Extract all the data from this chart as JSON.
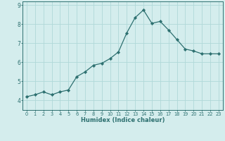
{
  "x": [
    0,
    1,
    2,
    3,
    4,
    5,
    6,
    7,
    8,
    9,
    10,
    11,
    12,
    13,
    14,
    15,
    16,
    17,
    18,
    19,
    20,
    21,
    22,
    23
  ],
  "y": [
    4.2,
    4.3,
    4.45,
    4.3,
    4.45,
    4.55,
    5.25,
    5.5,
    5.85,
    5.95,
    6.2,
    6.55,
    7.55,
    8.35,
    8.75,
    8.05,
    8.15,
    7.7,
    7.2,
    6.7,
    6.6,
    6.45,
    6.45,
    6.45
  ],
  "xlabel": "Humidex (Indice chaleur)",
  "ylim": [
    3.5,
    9.2
  ],
  "xlim": [
    -0.5,
    23.5
  ],
  "line_color": "#2d7070",
  "marker": "D",
  "marker_size": 2.2,
  "bg_color": "#d4eded",
  "grid_color": "#b0d8d8",
  "axis_color": "#2d7070",
  "tick_label_color": "#2d7070",
  "xlabel_color": "#2d7070",
  "yticks": [
    4,
    5,
    6,
    7,
    8,
    9
  ],
  "xticks": [
    0,
    1,
    2,
    3,
    4,
    5,
    6,
    7,
    8,
    9,
    10,
    11,
    12,
    13,
    14,
    15,
    16,
    17,
    18,
    19,
    20,
    21,
    22,
    23
  ],
  "xlabel_fontsize": 6.0,
  "xtick_fontsize": 4.8,
  "ytick_fontsize": 5.5
}
